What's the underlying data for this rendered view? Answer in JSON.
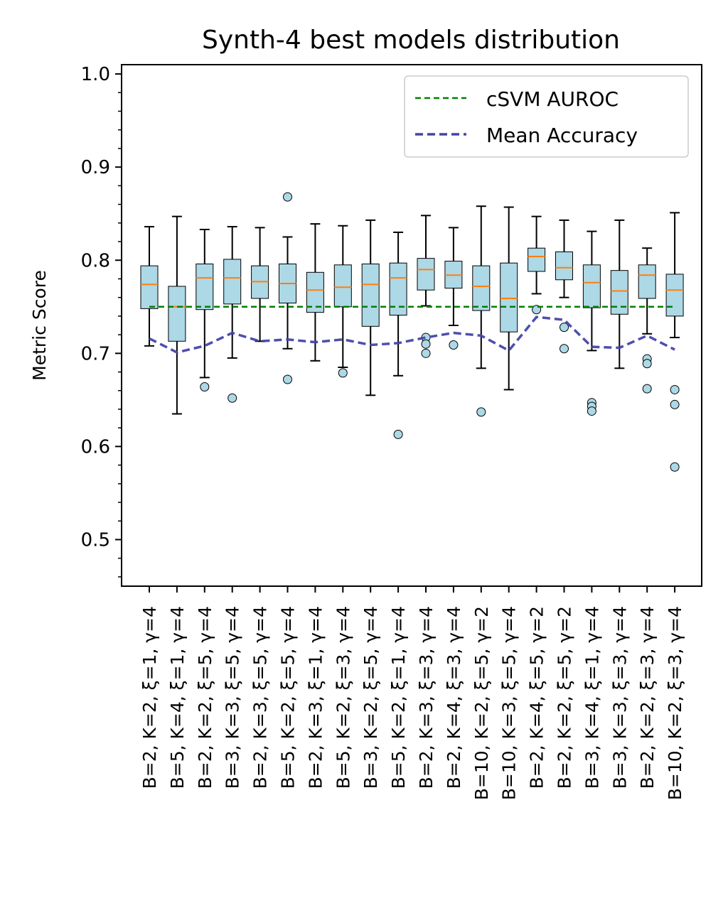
{
  "chart_data": {
    "type": "box",
    "title": "Synth-4 best models distribution",
    "xlabel": "",
    "ylabel": "Metric Score",
    "ylim": [
      0.45,
      1.01
    ],
    "y_ticks": [
      "0.5",
      "0.6",
      "0.7",
      "0.8",
      "0.9",
      "1.0"
    ],
    "grid": false,
    "legend_position": "top-right",
    "colors": {
      "box_fill": "#add8e6",
      "median": "#ff7f0e",
      "reference": "#008000",
      "mean": "#4444aa"
    },
    "categories": [
      "B=2, K=2, ξ=1, γ=4",
      "B=5, K=4, ξ=1, γ=4",
      "B=2, K=2, ξ=5, γ=4",
      "B=3, K=3, ξ=5, γ=4",
      "B=2, K=3, ξ=5, γ=4",
      "B=5, K=2, ξ=5, γ=4",
      "B=2, K=3, ξ=1, γ=4",
      "B=5, K=2, ξ=3, γ=4",
      "B=3, K=2, ξ=5, γ=4",
      "B=5, K=2, ξ=1, γ=4",
      "B=2, K=3, ξ=3, γ=4",
      "B=2, K=4, ξ=3, γ=4",
      "B=10, K=2, ξ=5, γ=2",
      "B=10, K=3, ξ=5, γ=4",
      "B=2, K=4, ξ=5, γ=2",
      "B=2, K=2, ξ=5, γ=2",
      "B=3, K=4, ξ=1, γ=4",
      "B=3, K=3, ξ=3, γ=4",
      "B=2, K=2, ξ=3, γ=4",
      "B=10, K=2, ξ=3, γ=4"
    ],
    "boxes": [
      {
        "whislo": 0.708,
        "q1": 0.748,
        "med": 0.774,
        "q3": 0.794,
        "whishi": 0.836,
        "fliers": []
      },
      {
        "whislo": 0.635,
        "q1": 0.713,
        "med": 0.75,
        "q3": 0.772,
        "whishi": 0.847,
        "fliers": []
      },
      {
        "whislo": 0.674,
        "q1": 0.747,
        "med": 0.781,
        "q3": 0.796,
        "whishi": 0.833,
        "fliers": [
          0.664
        ]
      },
      {
        "whislo": 0.695,
        "q1": 0.753,
        "med": 0.781,
        "q3": 0.801,
        "whishi": 0.836,
        "fliers": [
          0.652
        ]
      },
      {
        "whislo": 0.713,
        "q1": 0.759,
        "med": 0.777,
        "q3": 0.794,
        "whishi": 0.835,
        "fliers": []
      },
      {
        "whislo": 0.705,
        "q1": 0.754,
        "med": 0.775,
        "q3": 0.796,
        "whishi": 0.825,
        "fliers": [
          0.868,
          0.672
        ]
      },
      {
        "whislo": 0.692,
        "q1": 0.744,
        "med": 0.768,
        "q3": 0.787,
        "whishi": 0.839,
        "fliers": []
      },
      {
        "whislo": 0.685,
        "q1": 0.75,
        "med": 0.771,
        "q3": 0.795,
        "whishi": 0.837,
        "fliers": [
          0.679
        ]
      },
      {
        "whislo": 0.655,
        "q1": 0.729,
        "med": 0.774,
        "q3": 0.796,
        "whishi": 0.843,
        "fliers": []
      },
      {
        "whislo": 0.676,
        "q1": 0.741,
        "med": 0.781,
        "q3": 0.797,
        "whishi": 0.83,
        "fliers": [
          0.613
        ]
      },
      {
        "whislo": 0.751,
        "q1": 0.768,
        "med": 0.79,
        "q3": 0.802,
        "whishi": 0.848,
        "fliers": [
          0.717,
          0.71,
          0.7
        ]
      },
      {
        "whislo": 0.73,
        "q1": 0.77,
        "med": 0.784,
        "q3": 0.799,
        "whishi": 0.835,
        "fliers": [
          0.709
        ]
      },
      {
        "whislo": 0.684,
        "q1": 0.746,
        "med": 0.772,
        "q3": 0.794,
        "whishi": 0.858,
        "fliers": [
          0.637
        ]
      },
      {
        "whislo": 0.661,
        "q1": 0.723,
        "med": 0.759,
        "q3": 0.797,
        "whishi": 0.857,
        "fliers": []
      },
      {
        "whislo": 0.764,
        "q1": 0.788,
        "med": 0.804,
        "q3": 0.813,
        "whishi": 0.847,
        "fliers": [
          0.747
        ]
      },
      {
        "whislo": 0.76,
        "q1": 0.779,
        "med": 0.792,
        "q3": 0.809,
        "whishi": 0.843,
        "fliers": [
          0.728,
          0.705
        ]
      },
      {
        "whislo": 0.703,
        "q1": 0.749,
        "med": 0.776,
        "q3": 0.795,
        "whishi": 0.831,
        "fliers": [
          0.647,
          0.643,
          0.638
        ]
      },
      {
        "whislo": 0.684,
        "q1": 0.742,
        "med": 0.767,
        "q3": 0.789,
        "whishi": 0.843,
        "fliers": []
      },
      {
        "whislo": 0.721,
        "q1": 0.759,
        "med": 0.784,
        "q3": 0.795,
        "whishi": 0.813,
        "fliers": [
          0.694,
          0.689,
          0.662
        ]
      },
      {
        "whislo": 0.717,
        "q1": 0.74,
        "med": 0.768,
        "q3": 0.785,
        "whishi": 0.851,
        "fliers": [
          0.661,
          0.645,
          0.578
        ]
      }
    ],
    "series": [
      {
        "name": "cSVM AUROC",
        "style": "dashed",
        "values": [
          0.75,
          0.75,
          0.75,
          0.75,
          0.75,
          0.75,
          0.75,
          0.75,
          0.75,
          0.75,
          0.75,
          0.75,
          0.75,
          0.75,
          0.75,
          0.75,
          0.75,
          0.75,
          0.75,
          0.75
        ]
      },
      {
        "name": "Mean Accuracy",
        "style": "dashed",
        "values": [
          0.716,
          0.701,
          0.708,
          0.722,
          0.713,
          0.715,
          0.712,
          0.715,
          0.709,
          0.711,
          0.717,
          0.722,
          0.719,
          0.703,
          0.739,
          0.736,
          0.707,
          0.706,
          0.719,
          0.704
        ]
      }
    ]
  }
}
